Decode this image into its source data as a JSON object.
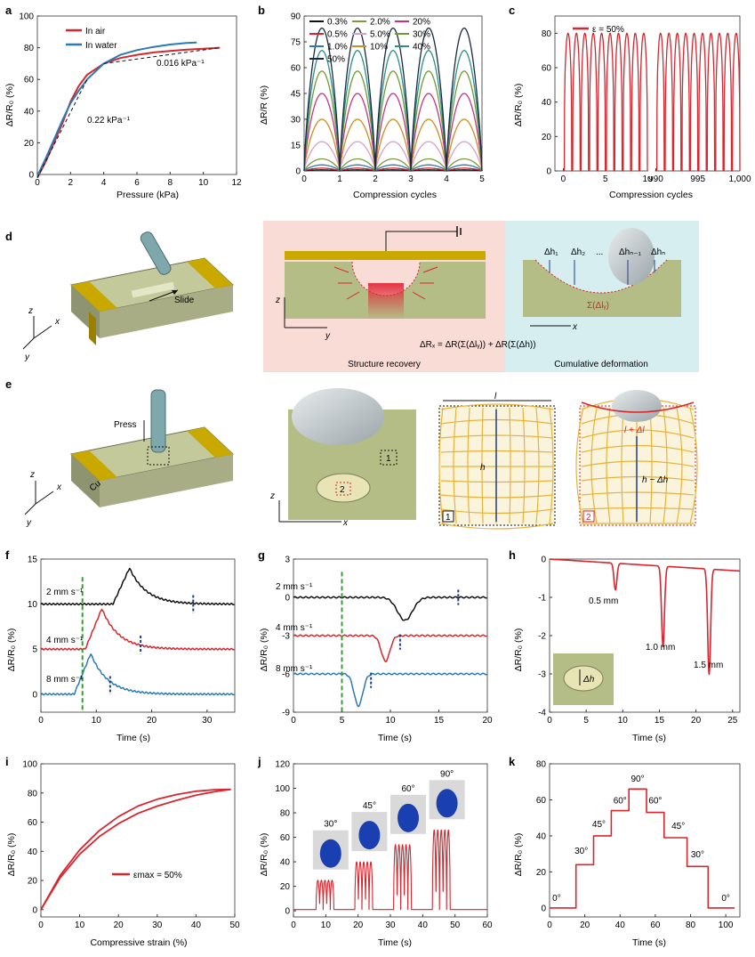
{
  "panels": {
    "a": {
      "letter": "a",
      "xlabel": "Pressure (kPa)",
      "ylabel": "ΔR/R₀ (%)",
      "legend": [
        "In air",
        "In water"
      ],
      "ann_low": "0.22 kPa⁻¹",
      "ann_high": "0.016 kPa⁻¹"
    },
    "b": {
      "letter": "b",
      "xlabel": "Compression cycles",
      "ylabel": "ΔR/R (%)",
      "legend": [
        "0.3%",
        "0.5%",
        "1.0%",
        "2.0%",
        "5.0%",
        "10%",
        "20%",
        "30%",
        "40%",
        "50%"
      ]
    },
    "c": {
      "letter": "c",
      "xlabel": "Compression cycles",
      "ylabel": "ΔR/R₀ (%)",
      "legend": [
        "ε = 50%"
      ]
    },
    "d": {
      "letter": "d",
      "slide": "Slide",
      "structure_recovery": "Structure recovery",
      "cumulative_deformation": "Cumulative deformation",
      "equation": "ΔRₓ = ΔR(Σ(Δlᵧ)) + ΔR(Σ(Δh))",
      "sigma_ly": "Σ(Δlᵧ)",
      "dh_labels": [
        "Δh₁",
        "Δh₂",
        "...",
        "Δhₙ₋₁",
        "Δhₙ"
      ],
      "axes": [
        "z",
        "x",
        "y"
      ],
      "axis_y": "y",
      "axis_x": "x"
    },
    "e": {
      "letter": "e",
      "press": "Press",
      "cu": "Cu",
      "box1": "1",
      "box2": "2",
      "l": "l",
      "h": "h",
      "l_dl": "l + Δl",
      "h_dh": "h − Δh",
      "axes": [
        "z",
        "x",
        "y"
      ],
      "axis_x": "x"
    },
    "f": {
      "letter": "f",
      "xlabel": "Time (s)",
      "ylabel": "ΔR/R₀ (%)",
      "labels": [
        "2 mm s⁻¹",
        "4 mm s⁻¹",
        "8 mm s⁻¹"
      ]
    },
    "g": {
      "letter": "g",
      "xlabel": "Time (s)",
      "ylabel": "ΔR/R₀ (%)",
      "labels": [
        "2 mm s⁻¹",
        "4 mm s⁻¹",
        "8 mm s⁻¹"
      ]
    },
    "h": {
      "letter": "h",
      "xlabel": "Time (s)",
      "ylabel": "ΔR/R₀ (%)",
      "labels": [
        "0.5 mm",
        "1.0 mm",
        "1.5 mm"
      ],
      "inset": "Δh"
    },
    "i": {
      "letter": "i",
      "xlabel": "Compressive strain (%)",
      "ylabel": "ΔR/R₀ (%)",
      "legend": [
        "εmax = 50%"
      ]
    },
    "j": {
      "letter": "j",
      "xlabel": "Time (s)",
      "ylabel": "ΔR/R₀ (%)",
      "angles": [
        "30°",
        "45°",
        "60°",
        "90°"
      ]
    },
    "k": {
      "letter": "k",
      "xlabel": "Time (s)",
      "ylabel": "ΔR/R₀ (%)",
      "angles": [
        "0°",
        "30°",
        "45°",
        "60°",
        "90°",
        "60°",
        "45°",
        "30°",
        "0°"
      ]
    }
  },
  "colors": {
    "red": "#d7262e",
    "blue": "#2a7ab4",
    "black": "#111111",
    "green": "#3a9b3a",
    "navy": "#1f3f8f",
    "gold": "#c9a800",
    "olive": "#b5bd86"
  },
  "chart_data": [
    {
      "panel": "a",
      "type": "line",
      "xlim": [
        0,
        12
      ],
      "ylim": [
        0,
        100
      ],
      "xticks": [
        0,
        2,
        4,
        6,
        8,
        10,
        12
      ],
      "yticks": [
        0,
        20,
        40,
        60,
        80,
        100
      ],
      "series": [
        {
          "name": "In air",
          "x": [
            0,
            0.5,
            1,
            1.5,
            2,
            2.5,
            3,
            4,
            5,
            6,
            7,
            8,
            9,
            10,
            11
          ],
          "y": [
            -2,
            8,
            20,
            32,
            46,
            56,
            63,
            70,
            73.5,
            75.5,
            77,
            78,
            78.8,
            79.3,
            80
          ]
        },
        {
          "name": "In water",
          "x": [
            0,
            0.5,
            1,
            1.5,
            2,
            2.5,
            3,
            4,
            5,
            6,
            7,
            8,
            9,
            9.6
          ],
          "y": [
            -1,
            10,
            22,
            34,
            45,
            53,
            60,
            70,
            75.5,
            78.5,
            80.5,
            82,
            83,
            83.3
          ]
        }
      ]
    },
    {
      "panel": "b",
      "type": "line",
      "xlim": [
        0,
        5
      ],
      "ylim": [
        0,
        90
      ],
      "xticks": [
        0,
        1,
        2,
        3,
        4,
        5
      ],
      "yticks": [
        0,
        15,
        30,
        45,
        60,
        75,
        90
      ],
      "series": [
        {
          "name": "0.3%",
          "peak": 0.6
        },
        {
          "name": "0.5%",
          "peak": 1.6
        },
        {
          "name": "1.0%",
          "peak": 3.5
        },
        {
          "name": "2.0%",
          "peak": 7
        },
        {
          "name": "5.0%",
          "peak": 17
        },
        {
          "name": "10%",
          "peak": 30
        },
        {
          "name": "20%",
          "peak": 45
        },
        {
          "name": "30%",
          "peak": 58
        },
        {
          "name": "40%",
          "peak": 70
        },
        {
          "name": "50%",
          "peak": 83
        }
      ]
    },
    {
      "panel": "c",
      "type": "line",
      "ylim": [
        0,
        90
      ],
      "yticks": [
        0,
        20,
        40,
        60,
        80
      ],
      "xticks": [
        "0",
        "5",
        "10",
        "990",
        "995",
        "1,000"
      ],
      "series": [
        {
          "name": "ε = 50%",
          "peak": 80,
          "cycles_shown": [
            [
              0,
              10
            ],
            [
              990,
              1000
            ]
          ]
        }
      ]
    },
    {
      "panel": "f",
      "type": "line",
      "xlim": [
        0,
        35
      ],
      "ylim": [
        -2,
        15
      ],
      "xticks": [
        0,
        10,
        20,
        30
      ],
      "yticks": [
        0,
        5,
        10,
        15
      ],
      "series": [
        {
          "name": "2 mm s⁻¹",
          "baseline": 10,
          "peak": 14,
          "peak_t": 16
        },
        {
          "name": "4 mm s⁻¹",
          "baseline": 5,
          "peak": 9.5,
          "peak_t": 11
        },
        {
          "name": "8 mm s⁻¹",
          "baseline": 0,
          "peak": 4.5,
          "peak_t": 9
        }
      ]
    },
    {
      "panel": "g",
      "type": "line",
      "xlim": [
        0,
        20
      ],
      "ylim": [
        -9,
        3
      ],
      "xticks": [
        0,
        5,
        10,
        15,
        20
      ],
      "yticks": [
        -9,
        -6,
        -3,
        0,
        3
      ],
      "series": [
        {
          "name": "2 mm s⁻¹",
          "baseline": 0,
          "min": -1.8,
          "min_t": 11.5
        },
        {
          "name": "4 mm s⁻¹",
          "baseline": -3,
          "min": -5,
          "min_t": 9.5
        },
        {
          "name": "8 mm s⁻¹",
          "baseline": -6,
          "min": -8.5,
          "min_t": 6.7
        }
      ]
    },
    {
      "panel": "h",
      "type": "line",
      "xlim": [
        0,
        26
      ],
      "ylim": [
        -4,
        0
      ],
      "xticks": [
        0,
        5,
        10,
        15,
        20,
        25
      ],
      "yticks": [
        -4,
        -3,
        -2,
        -1,
        0
      ],
      "series": [
        {
          "name": "dips",
          "t": [
            9,
            15.5,
            21.8
          ],
          "depth": [
            -0.9,
            -2.3,
            -2.95
          ]
        }
      ]
    },
    {
      "panel": "i",
      "type": "line",
      "xlim": [
        0,
        50
      ],
      "ylim": [
        -5,
        100
      ],
      "xticks": [
        0,
        10,
        20,
        30,
        40,
        50
      ],
      "yticks": [
        0,
        20,
        40,
        60,
        80,
        100
      ],
      "series": [
        {
          "name": "εmax = 50%",
          "x": [
            0,
            5,
            10,
            15,
            20,
            25,
            30,
            35,
            40,
            45,
            49
          ],
          "y": [
            0,
            22,
            38,
            50,
            59,
            66,
            71,
            75,
            78.5,
            81,
            82.5
          ]
        }
      ]
    },
    {
      "panel": "j",
      "type": "line",
      "xlim": [
        0,
        60
      ],
      "ylim": [
        -5,
        120
      ],
      "xticks": [
        0,
        10,
        20,
        30,
        40,
        50,
        60
      ],
      "yticks": [
        0,
        20,
        40,
        60,
        80,
        100,
        120
      ],
      "series": [
        {
          "name": "pulses",
          "groups": [
            {
              "angle": "30°",
              "t0": 7,
              "peak": 25
            },
            {
              "angle": "45°",
              "t0": 19,
              "peak": 40
            },
            {
              "angle": "60°",
              "t0": 31,
              "peak": 54
            },
            {
              "angle": "90°",
              "t0": 43,
              "peak": 66
            }
          ]
        }
      ]
    },
    {
      "panel": "k",
      "type": "line",
      "xlim": [
        0,
        108
      ],
      "ylim": [
        -5,
        80
      ],
      "xticks": [
        0,
        20,
        40,
        60,
        80,
        100
      ],
      "yticks": [
        0,
        20,
        40,
        60,
        80
      ],
      "series": [
        {
          "name": "steps",
          "t": [
            0,
            15,
            25,
            35,
            45,
            55,
            65,
            78,
            90,
            105
          ],
          "y": [
            0,
            24,
            40,
            54,
            66,
            53,
            39,
            23,
            0,
            0
          ]
        }
      ]
    }
  ]
}
